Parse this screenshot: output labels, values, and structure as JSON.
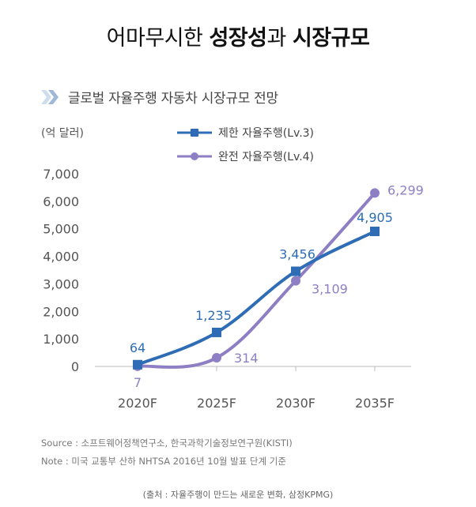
{
  "headline": {
    "normal": "어마무시한 ",
    "bold1": "성장성",
    "mid": "과 ",
    "bold2": "시장규모"
  },
  "chart_data": {
    "type": "line",
    "title": "글로벌 자율주행 자동차 시장규모 전망",
    "ylabel": "(억 달러)",
    "xlabel": "",
    "categories": [
      "2020F",
      "2025F",
      "2030F",
      "2035F"
    ],
    "ylim": [
      0,
      7000
    ],
    "yticks": [
      "0",
      "1,000",
      "2,000",
      "3,000",
      "4,000",
      "5,000",
      "6,000",
      "7,000"
    ],
    "ytick_values": [
      0,
      1000,
      2000,
      3000,
      4000,
      5000,
      6000,
      7000
    ],
    "grid": false,
    "legend": "top",
    "series": [
      {
        "name": "제한 자율주행(Lv.3)",
        "marker": "square",
        "color": "#2e6db5",
        "values": [
          64,
          1235,
          3456,
          4905
        ],
        "labels": [
          "64",
          "1,235",
          "3,456",
          "4,905"
        ]
      },
      {
        "name": "완전 자율주행(Lv.4)",
        "marker": "circle",
        "color": "#8e7fc4",
        "values": [
          7,
          314,
          3109,
          6299
        ],
        "labels": [
          "7",
          "314",
          "3,109",
          "6,299"
        ]
      }
    ]
  },
  "notes": {
    "source": "Source : 소프트웨어정책연구소, 한국과학기술정보연구원(KISTI)",
    "note": "Note : 미국 교통부 산하 NHTSA 2016년 10월 발표 단계 기준"
  },
  "footer": "(출처 : 자율주행이 만드는 새로운 변화, 삼정KPMG)"
}
